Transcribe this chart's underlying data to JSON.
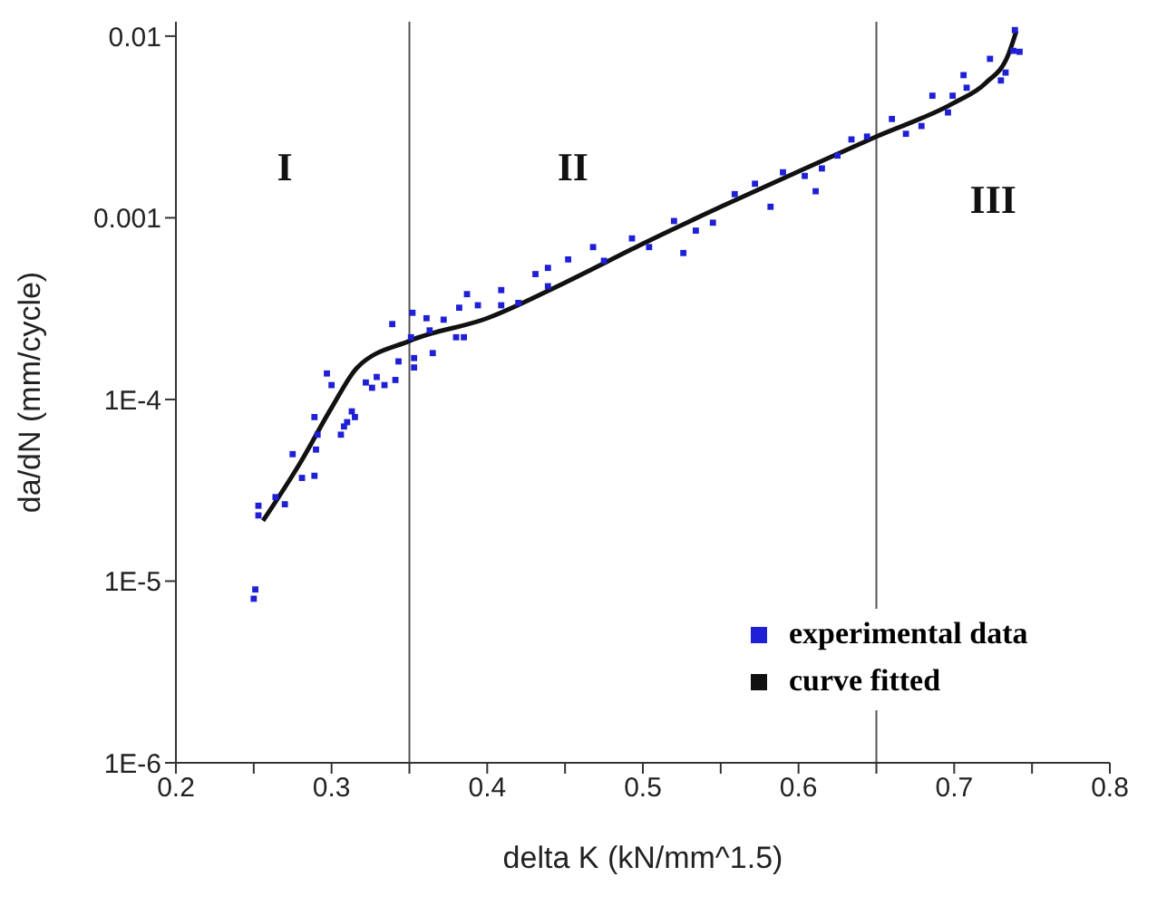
{
  "chart_data": {
    "type": "scatter",
    "xlabel": "delta K (kN/mm^1.5)",
    "ylabel": "da/dN (mm/cycle)",
    "log": "y",
    "legend": "bottom right",
    "marker": "square",
    "xlim": [
      0.2,
      0.8
    ],
    "xticks": [
      0.2,
      {
        "value": 0.25,
        "label": null
      },
      0.3,
      {
        "value": 0.35,
        "label": null
      },
      0.4,
      {
        "value": 0.45,
        "label": null
      },
      0.5,
      {
        "value": 0.55,
        "label": null
      },
      0.6,
      {
        "value": 0.65,
        "label": null
      },
      0.7,
      {
        "value": 0.75,
        "label": null
      },
      0.8
    ],
    "ylim": [
      1e-06,
      0.012
    ],
    "yticks": [
      {
        "value": 1e-06,
        "label": "1E-6"
      },
      {
        "value": 1e-05,
        "label": "1E-5"
      },
      {
        "value": 0.0001,
        "label": "1E-4"
      },
      0.001,
      0.01
    ],
    "ref_lines": [
      {
        "axis": "x",
        "value": 0.35,
        "color": "#555555"
      },
      {
        "axis": "x",
        "value": 0.65,
        "color": "#555555"
      }
    ],
    "annotations": [
      "I",
      "II",
      "III"
    ],
    "series": [
      {
        "name": "experimental data",
        "color": "#1f1fd6",
        "x": [
          0.25,
          0.251,
          0.253,
          0.253,
          0.27,
          0.264,
          0.281,
          0.289,
          0.275,
          0.29,
          0.291,
          0.289,
          0.306,
          0.308,
          0.313,
          0.31,
          0.315,
          0.3,
          0.297,
          0.322,
          0.326,
          0.329,
          0.334,
          0.341,
          0.343,
          0.353,
          0.353,
          0.351,
          0.339,
          0.352,
          0.361,
          0.363,
          0.365,
          0.372,
          0.382,
          0.38,
          0.387,
          0.385,
          0.394,
          0.409,
          0.409,
          0.42,
          0.431,
          0.439,
          0.439,
          0.452,
          0.468,
          0.475,
          0.493,
          0.504,
          0.52,
          0.526,
          0.534,
          0.545,
          0.559,
          0.572,
          0.582,
          0.59,
          0.604,
          0.611,
          0.615,
          0.625,
          0.634,
          0.644,
          0.66,
          0.669,
          0.679,
          0.686,
          0.696,
          0.699,
          0.706,
          0.708,
          0.723,
          0.73,
          0.733,
          0.738,
          0.742,
          0.739
        ],
        "values": [
          8e-06,
          9e-06,
          2.6e-05,
          2.3e-05,
          2.65e-05,
          2.9e-05,
          3.7e-05,
          3.8e-05,
          5e-05,
          5.3e-05,
          6.4e-05,
          8e-05,
          6.4e-05,
          7.1e-05,
          8.6e-05,
          7.5e-05,
          8e-05,
          0.00012,
          0.000139,
          0.000124,
          0.000116,
          0.000133,
          0.00012,
          0.000128,
          0.000162,
          0.000169,
          0.00015,
          0.00022,
          0.00026,
          0.0003,
          0.00028,
          0.00024,
          0.00018,
          0.000275,
          0.00032,
          0.00022,
          0.00038,
          0.00022,
          0.00033,
          0.0004,
          0.00033,
          0.00034,
          0.00049,
          0.00053,
          0.00042,
          0.00059,
          0.00069,
          0.00058,
          0.00077,
          0.00069,
          0.00096,
          0.00064,
          0.00085,
          0.00094,
          0.00135,
          0.00154,
          0.00115,
          0.00178,
          0.0017,
          0.0014,
          0.00187,
          0.0022,
          0.0027,
          0.0028,
          0.0035,
          0.0029,
          0.0032,
          0.0047,
          0.0038,
          0.0047,
          0.0061,
          0.0052,
          0.0075,
          0.0057,
          0.0063,
          0.0083,
          0.0082,
          0.0108
        ]
      },
      {
        "name": "curve fitted",
        "type": "line",
        "color": "#111111",
        "marker": "none",
        "x": [
          0.256,
          0.28,
          0.3,
          0.3165,
          0.35,
          0.4,
          0.45,
          0.5,
          0.55,
          0.6,
          0.65,
          0.7,
          0.72,
          0.735,
          0.74
        ],
        "values": [
          2.15e-05,
          4.5e-05,
          9e-05,
          0.00015,
          0.00021,
          0.00028,
          0.00044,
          0.00072,
          0.00115,
          0.0018,
          0.0028,
          0.0043,
          0.0055,
          0.008,
          0.0107
        ]
      }
    ]
  }
}
